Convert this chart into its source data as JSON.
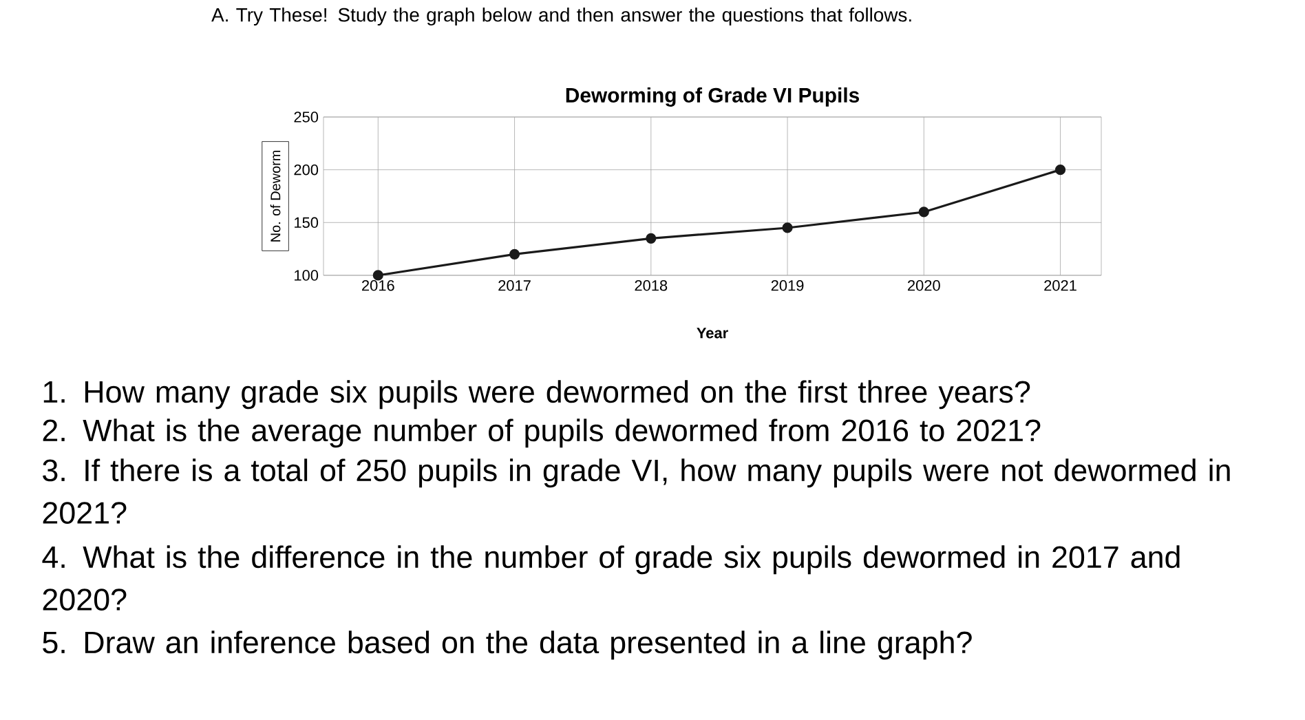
{
  "chart_data": {
    "type": "line",
    "title": "Deworming of Grade VI Pupils",
    "xlabel": "Year",
    "ylabel": "No. of Deworm",
    "categories": [
      "2016",
      "2017",
      "2018",
      "2019",
      "2020",
      "2021"
    ],
    "series": [
      {
        "color": "#1a1a1a",
        "values": [
          100,
          120,
          135,
          145,
          160,
          200
        ]
      }
    ],
    "ylim": [
      100,
      250
    ],
    "yticks": [
      100,
      150,
      200,
      250
    ],
    "grid": true,
    "marker": "circle",
    "line_style": "solid",
    "annotations": [
      "A. Try These! Study the graph below and then answer the questions that follows.",
      "1. How many grade six pupils were dewormed on the first three years?",
      "2. What is the average number of pupils dewormed from 2016 to 2021?",
      "3. If there is a total of 250 pupils in grade VI, how many pupils were not dewormed in 2021?",
      "4. What is the difference in the number of grade six pupils dewormed in 2017 and 2020?",
      "5. Draw an inference based on the data presented in a line graph?"
    ]
  }
}
